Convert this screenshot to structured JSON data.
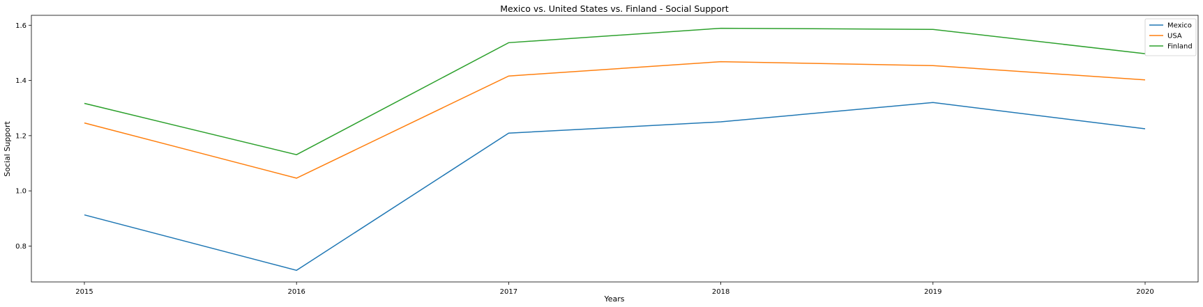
{
  "chart_data": {
    "type": "line",
    "title": "Mexico vs. United States vs. Finland - Social Support",
    "xlabel": "Years",
    "ylabel": "Social Support",
    "x": [
      "2015",
      "2016",
      "2017",
      "2018",
      "2019",
      "2020"
    ],
    "y_ticks": [
      "0.8",
      "1.0",
      "1.2",
      "1.4",
      "1.6"
    ],
    "ylim": [
      0.67,
      1.636
    ],
    "grid": false,
    "legend_position": "top-right",
    "series": [
      {
        "name": "Mexico",
        "color": "#1f77b4",
        "values": [
          0.913,
          0.712,
          1.209,
          1.25,
          1.32,
          1.225
        ]
      },
      {
        "name": "USA",
        "color": "#ff7f0e",
        "values": [
          1.246,
          1.046,
          1.416,
          1.468,
          1.454,
          1.402
        ]
      },
      {
        "name": "Finland",
        "color": "#2ca02c",
        "values": [
          1.317,
          1.131,
          1.537,
          1.589,
          1.585,
          1.497
        ]
      }
    ]
  }
}
